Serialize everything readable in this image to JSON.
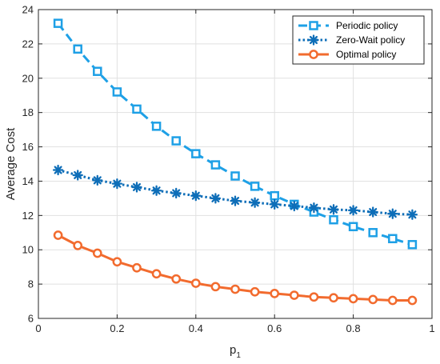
{
  "chart_data": {
    "type": "line",
    "title": "",
    "xlabel": "p",
    "xlabel_subscript": "1",
    "ylabel": "Average Cost",
    "xlim": [
      0,
      1
    ],
    "ylim": [
      6,
      24
    ],
    "xticks": [
      0,
      0.2,
      0.4,
      0.6,
      0.8,
      1
    ],
    "xtick_labels": [
      "0",
      "0.2",
      "0.4",
      "0.6",
      "0.8",
      "1"
    ],
    "yticks": [
      6,
      8,
      10,
      12,
      14,
      16,
      18,
      20,
      22,
      24
    ],
    "ytick_labels": [
      "6",
      "8",
      "10",
      "12",
      "14",
      "16",
      "18",
      "20",
      "22",
      "24"
    ],
    "grid": true,
    "legend_position": "top-right",
    "x": [
      0.05,
      0.1,
      0.15,
      0.2,
      0.25,
      0.3,
      0.35,
      0.4,
      0.45,
      0.5,
      0.55,
      0.6,
      0.65,
      0.7,
      0.75,
      0.8,
      0.85,
      0.9,
      0.95
    ],
    "series": [
      {
        "name": "Periodic policy",
        "color": "#1ea0e6",
        "marker": "square",
        "line_style": "dashed",
        "values": [
          23.2,
          21.7,
          20.4,
          19.2,
          18.2,
          17.2,
          16.35,
          15.6,
          14.95,
          14.3,
          13.7,
          13.15,
          12.65,
          12.2,
          11.75,
          11.35,
          11.0,
          10.65,
          10.3
        ]
      },
      {
        "name": "Zero-Wait policy",
        "color": "#0e6eb8",
        "marker": "star",
        "line_style": "dotted",
        "values": [
          14.65,
          14.35,
          14.05,
          13.85,
          13.65,
          13.45,
          13.3,
          13.15,
          13.0,
          12.85,
          12.75,
          12.65,
          12.55,
          12.45,
          12.35,
          12.3,
          12.2,
          12.1,
          12.05
        ]
      },
      {
        "name": "Optimal policy",
        "color": "#f26b2e",
        "marker": "circle",
        "line_style": "solid",
        "values": [
          10.85,
          10.25,
          9.8,
          9.3,
          8.95,
          8.6,
          8.3,
          8.05,
          7.85,
          7.7,
          7.55,
          7.45,
          7.35,
          7.25,
          7.2,
          7.15,
          7.1,
          7.05,
          7.05
        ]
      }
    ]
  }
}
